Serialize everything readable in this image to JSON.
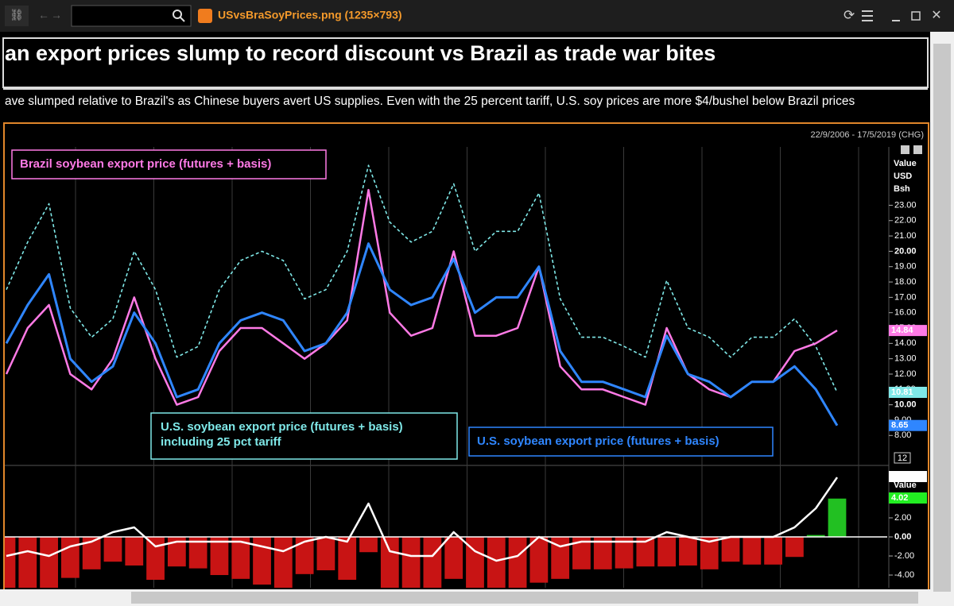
{
  "window": {
    "title": "USvsBraSoyPrices.png (1235×793)"
  },
  "headline": "an export prices slump to record discount vs Brazil as trade war bites",
  "summary": "ave slumped relative to Brazil's as Chinese buyers avert US supplies. Even with the 25 percent tariff, U.S. soy prices are more $4/bushel below Brazil prices",
  "chart": {
    "type": "line",
    "date_range": "22/9/2006 - 17/5/2019 (CHG)",
    "upper": {
      "axis_label": [
        "Value",
        "USD",
        "Bsh"
      ],
      "scale_badge": "12",
      "ylim": [
        6.1,
        26.8
      ],
      "yticks": [
        {
          "value": 23,
          "label": "23.00"
        },
        {
          "value": 22,
          "label": "22.00"
        },
        {
          "value": 21,
          "label": "21.00"
        },
        {
          "value": 20,
          "label": "20.00"
        },
        {
          "value": 19,
          "label": "19.00"
        },
        {
          "value": 18,
          "label": "18.00"
        },
        {
          "value": 17,
          "label": "17.00"
        },
        {
          "value": 16,
          "label": "16.00"
        },
        {
          "value": 15,
          "label": "15.00"
        },
        {
          "value": 14,
          "label": "14.00"
        },
        {
          "value": 13,
          "label": "13.00"
        },
        {
          "value": 12,
          "label": "12.00"
        },
        {
          "value": 11,
          "label": "11.00"
        },
        {
          "value": 10,
          "label": "10.00"
        },
        {
          "value": 9,
          "label": "9.00"
        },
        {
          "value": 8,
          "label": "8.00"
        }
      ],
      "series": [
        {
          "name": "U.S. soybean export price (futures + basis)\nincluding 25 pct tariff",
          "color": "#7fe8e8",
          "dashed": true,
          "last_label": "10.81",
          "values": [
            17.5,
            20.6,
            23.1,
            16.3,
            14.4,
            15.6,
            20,
            17.5,
            13.1,
            13.8,
            17.5,
            19.4,
            20,
            19.4,
            16.9,
            17.5,
            20,
            25.6,
            21.9,
            20.6,
            21.3,
            24.4,
            20,
            21.3,
            21.3,
            23.8,
            16.9,
            14.4,
            14.4,
            13.8,
            13.1,
            18.1,
            15,
            14.4,
            13.1,
            14.4,
            14.4,
            15.6,
            13.8,
            10.81
          ]
        },
        {
          "name": "Brazil soybean export price (futures + basis)",
          "color": "#ff7ae6",
          "last_label": "14.84",
          "values": [
            12,
            15,
            16.5,
            12,
            11,
            13,
            17,
            13,
            10,
            10.5,
            13.5,
            15,
            15,
            14,
            13,
            14,
            15.5,
            24,
            16,
            14.5,
            15,
            20,
            14.5,
            14.5,
            15,
            19,
            12.5,
            11,
            11,
            10.5,
            10,
            15,
            12,
            11,
            10.5,
            11.5,
            11.5,
            13.5,
            14,
            14.84
          ]
        },
        {
          "name": "U.S. soybean export price (futures + basis)",
          "color": "#2f86ff",
          "last_label": "8.65",
          "values": [
            14,
            16.5,
            18.5,
            13,
            11.5,
            12.5,
            16,
            14,
            10.5,
            11,
            14,
            15.5,
            16,
            15.5,
            13.5,
            14,
            16,
            20.5,
            17.5,
            16.5,
            17,
            19.5,
            16,
            17,
            17,
            19,
            13.5,
            11.5,
            11.5,
            11,
            10.5,
            14.5,
            12,
            11.5,
            10.5,
            11.5,
            11.5,
            12.5,
            11,
            8.65
          ]
        }
      ]
    },
    "lower": {
      "axis_label": "Value",
      "ylim": [
        -5.33,
        7.33
      ],
      "yticks": [
        {
          "value": 2,
          "label": "2.00"
        },
        {
          "value": 0,
          "label": "0.00"
        },
        {
          "value": -2,
          "label": "-2.00"
        },
        {
          "value": -4,
          "label": "-4.00"
        }
      ],
      "spread": {
        "color": "#ffffff",
        "last_label": "6.24",
        "values": [
          -2,
          -1.5,
          -2,
          -1,
          -0.5,
          0.5,
          1,
          -1,
          -0.5,
          -0.5,
          -0.5,
          -0.5,
          -1,
          -1.5,
          -0.5,
          0,
          -0.5,
          3.5,
          -1.5,
          -2,
          -2,
          0.5,
          -1.5,
          -2.5,
          -2,
          0,
          -1,
          -0.5,
          -0.5,
          -0.5,
          -0.5,
          0.5,
          0,
          -0.5,
          0,
          0,
          0,
          1,
          3,
          6.24
        ]
      },
      "bars": {
        "color": "#c81414",
        "positive_color": "#22c022",
        "last_label": "4.02",
        "values": [
          -5.5,
          -5.6,
          -6.6,
          -4.3,
          -3.4,
          -2.6,
          -3,
          -4.5,
          -3.1,
          -3.3,
          -4,
          -4.4,
          -5,
          -5.4,
          -3.9,
          -3.5,
          -4.5,
          -1.6,
          -5.9,
          -6.1,
          -6.3,
          -4.4,
          -5.5,
          -6.8,
          -6.3,
          -4.8,
          -4.4,
          -3.4,
          -3.4,
          -3.3,
          -3.1,
          -3.1,
          -3,
          -3.4,
          -2.6,
          -2.9,
          -2.9,
          -2.1,
          0.2,
          4.02
        ]
      }
    }
  }
}
